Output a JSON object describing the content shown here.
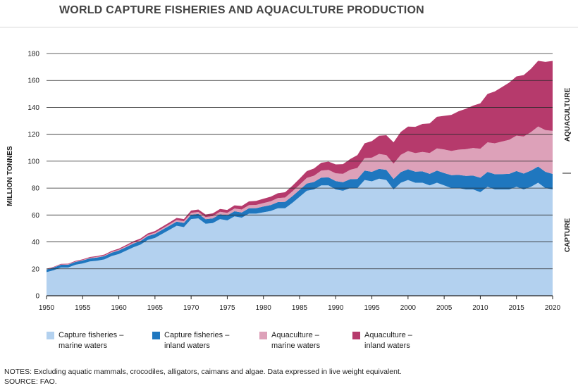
{
  "title": "WORLD CAPTURE FISHERIES AND AQUACULTURE PRODUCTION",
  "chart_data": {
    "type": "area",
    "stacked": true,
    "title": "WORLD CAPTURE FISHERIES AND AQUACULTURE PRODUCTION",
    "xlabel": "",
    "ylabel": "MILLION TONNES",
    "xlim": [
      1950,
      2020
    ],
    "ylim": [
      0,
      180
    ],
    "yticks": [
      "0",
      "20",
      "40",
      "60",
      "80",
      "100",
      "120",
      "140",
      "160",
      "180"
    ],
    "xticks": [
      "1950",
      "1955",
      "1960",
      "1965",
      "1970",
      "1975",
      "1980",
      "1985",
      "1990",
      "1995",
      "2000",
      "2005",
      "2010",
      "2015",
      "2020"
    ],
    "grid": "horizontal",
    "right_labels": {
      "upper": "AQUACULTURE",
      "lower": "CAPTURE"
    },
    "x": [
      1950,
      1951,
      1952,
      1953,
      1954,
      1955,
      1956,
      1957,
      1958,
      1959,
      1960,
      1961,
      1962,
      1963,
      1964,
      1965,
      1966,
      1967,
      1968,
      1969,
      1970,
      1971,
      1972,
      1973,
      1974,
      1975,
      1976,
      1977,
      1978,
      1979,
      1980,
      1981,
      1982,
      1983,
      1984,
      1985,
      1986,
      1987,
      1988,
      1989,
      1990,
      1991,
      1992,
      1993,
      1994,
      1995,
      1996,
      1997,
      1998,
      1999,
      2000,
      2001,
      2002,
      2003,
      2004,
      2005,
      2006,
      2007,
      2008,
      2009,
      2010,
      2011,
      2012,
      2013,
      2014,
      2015,
      2016,
      2017,
      2018,
      2019,
      2020
    ],
    "series": [
      {
        "name": "Capture fisheries – marine waters",
        "color": "#b3d1ef",
        "values": [
          17.5,
          19,
          21,
          21,
          23,
          24,
          25.5,
          26,
          27,
          29.5,
          31,
          33.5,
          36,
          38,
          41.5,
          43,
          46,
          49,
          52,
          51,
          57,
          57.5,
          53.5,
          54,
          57,
          56,
          59,
          58,
          61,
          61,
          62,
          63,
          65,
          65,
          69,
          73.5,
          78,
          79,
          82,
          82,
          79,
          78,
          80,
          80,
          86,
          85,
          87,
          86,
          79,
          84,
          86,
          84,
          84,
          82,
          84,
          82,
          80,
          80,
          79,
          79,
          77,
          81,
          79,
          79,
          79,
          81,
          79,
          81,
          84,
          80,
          79
        ]
      },
      {
        "name": "Capture fisheries – inland waters",
        "color": "#1f77bf",
        "values": [
          2,
          2,
          2,
          2.1,
          2.1,
          2.2,
          2.3,
          2.4,
          2.4,
          2.5,
          2.6,
          2.6,
          2.7,
          2.7,
          2.8,
          2.9,
          3,
          3,
          3.1,
          3.1,
          3.2,
          3.3,
          3.4,
          3.5,
          3.6,
          3.7,
          3.8,
          3.9,
          4,
          4.1,
          4.3,
          4.4,
          4.6,
          4.8,
          5,
          5.2,
          5.4,
          5.6,
          5.8,
          6,
          6.2,
          6.4,
          6.6,
          6.8,
          7,
          7.1,
          7.3,
          7.5,
          7.7,
          7.9,
          8,
          8.2,
          8.4,
          8.6,
          9,
          9.2,
          9.6,
          9.8,
          10.1,
          10.3,
          10.7,
          11,
          11.3,
          11.4,
          11.6,
          11.7,
          11.8,
          12,
          12,
          12.1,
          11.5
        ]
      },
      {
        "name": "Aquaculture – marine waters",
        "color": "#dda1b9",
        "values": [
          0.2,
          0.2,
          0.3,
          0.3,
          0.3,
          0.4,
          0.4,
          0.5,
          0.5,
          0.6,
          0.6,
          0.7,
          0.8,
          0.8,
          0.9,
          1,
          1,
          1.1,
          1.2,
          1.3,
          1.4,
          1.5,
          1.6,
          1.7,
          1.8,
          1.9,
          2,
          2.2,
          2.3,
          2.4,
          2.6,
          2.8,
          3,
          3.2,
          3.5,
          3.8,
          4.2,
          4.6,
          5.2,
          5.5,
          5.8,
          6.2,
          7,
          8.2,
          9.3,
          10.5,
          11.1,
          11,
          11.5,
          12.8,
          13.5,
          13.8,
          14.5,
          15.5,
          16.5,
          17.5,
          18,
          18.8,
          19.8,
          20.5,
          21.5,
          22,
          23,
          24.2,
          25.3,
          26.3,
          27.5,
          28.6,
          29.8,
          31,
          32
        ]
      },
      {
        "name": "Aquaculture – inland waters",
        "color": "#b63a6c",
        "values": [
          0.3,
          0.3,
          0.4,
          0.4,
          0.5,
          0.5,
          0.6,
          0.6,
          0.7,
          0.7,
          0.8,
          0.9,
          1,
          1,
          1.1,
          1.2,
          1.3,
          1.4,
          1.5,
          1.6,
          1.7,
          1.8,
          1.9,
          2,
          2.1,
          2.2,
          2.4,
          2.6,
          2.8,
          3,
          3.2,
          3.4,
          3.6,
          3.9,
          4.2,
          4.5,
          5,
          5.4,
          5.8,
          6.2,
          6.6,
          7.2,
          8,
          9.5,
          11,
          12.3,
          13.5,
          14.8,
          15.8,
          17,
          18.2,
          19.5,
          20.8,
          22,
          23.5,
          25,
          26.8,
          28.5,
          30,
          31.5,
          33.8,
          36,
          38.5,
          40.5,
          42.5,
          44,
          45.7,
          47,
          48.8,
          50.7,
          52
        ]
      }
    ]
  },
  "legend": [
    {
      "line1": "Capture fisheries –",
      "line2": "marine waters",
      "color": "#b3d1ef"
    },
    {
      "line1": "Capture fisheries –",
      "line2": "inland waters",
      "color": "#1f77bf"
    },
    {
      "line1": "Aquaculture –",
      "line2": "marine waters",
      "color": "#dda1b9"
    },
    {
      "line1": "Aquaculture –",
      "line2": "inland waters",
      "color": "#b63a6c"
    }
  ],
  "notes": {
    "line1": "NOTES: Excluding aquatic mammals, crocodiles, alligators, caimans and algae. Data expressed in live weight equivalent.",
    "line2": "SOURCE: FAO."
  }
}
